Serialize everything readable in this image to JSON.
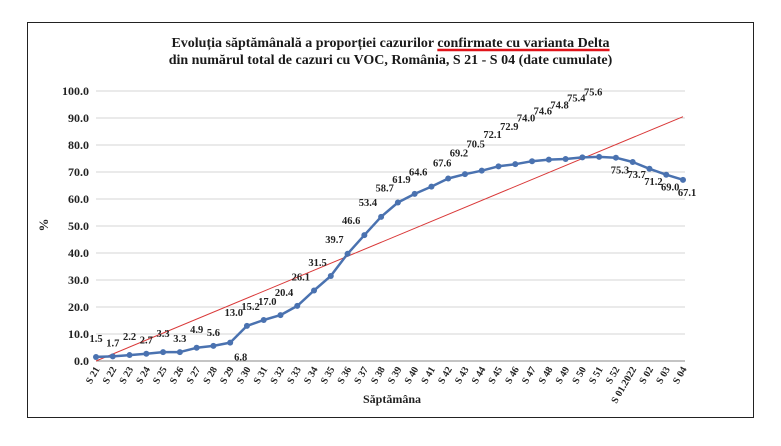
{
  "chart_data": {
    "type": "line",
    "title_line1_prefix": "Evoluția săptămânală a proporției cazurilor ",
    "title_line1_highlight": "confirmate cu varianta Delta",
    "title_line2": "din numărul total de cazuri cu VOC, România, S 21 - S 04 (date cumulate)",
    "xlabel": "Săptămâna",
    "ylabel": "%",
    "ylim": [
      0,
      100
    ],
    "yticks": [
      "0.0",
      "10.0",
      "20.0",
      "30.0",
      "40.0",
      "50.0",
      "60.0",
      "70.0",
      "80.0",
      "90.0",
      "100.0"
    ],
    "categories": [
      "S 21",
      "S 22",
      "S 23",
      "S 24",
      "S 25",
      "S 26",
      "S 27",
      "S 28",
      "S 29",
      "S 30",
      "S 31",
      "S 32",
      "S 33",
      "S 34",
      "S 35",
      "S 36",
      "S 37",
      "S 38",
      "S 39",
      "S 40",
      "S 41",
      "S 42",
      "S 43",
      "S 44",
      "S 45",
      "S 46",
      "S 47",
      "S 48",
      "S 49",
      "S 50",
      "S 51",
      "S 52",
      "S 01.2022",
      "S 02",
      "S 03",
      "S 04"
    ],
    "values": [
      1.5,
      1.7,
      2.2,
      2.7,
      3.3,
      3.3,
      4.9,
      5.6,
      6.8,
      13.0,
      15.2,
      17.0,
      20.4,
      26.1,
      31.5,
      39.7,
      46.6,
      53.4,
      58.7,
      61.9,
      64.6,
      67.6,
      69.2,
      70.5,
      72.1,
      72.9,
      74.0,
      74.6,
      74.8,
      75.4,
      75.6,
      75.3,
      73.7,
      71.2,
      69.0,
      67.1
    ],
    "value_labels": [
      "1.5",
      "1.7",
      "2.2",
      "2.7",
      "3.3",
      "3.3",
      "4.9",
      "5.6",
      "6.8",
      "13.0",
      "15.2",
      "17.0",
      "20.4",
      "26.1",
      "31.5",
      "39.7",
      "46.6",
      "53.4",
      "58.7",
      "61.9",
      "64.6",
      "67.6",
      "69.2",
      "70.5",
      "72.1",
      "72.9",
      "74.0",
      "74.6",
      "74.8",
      "75.4",
      "75.6",
      "75.3",
      "73.7",
      "71.2",
      "69.0",
      "67.1"
    ],
    "trendline": {
      "start": 0.0,
      "end": 90.5
    },
    "colors": {
      "series": "#4a72b0",
      "trendline": "#d93838",
      "highlight_underline": "#e0141a",
      "text": "#222222",
      "grid": "#d4d4d4"
    },
    "grid": true
  }
}
